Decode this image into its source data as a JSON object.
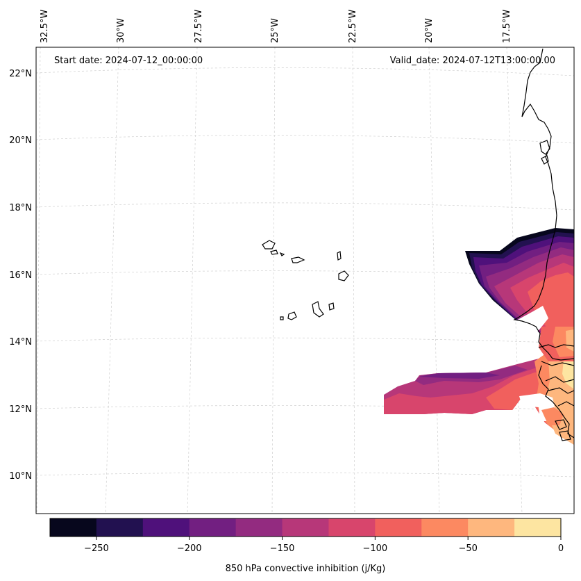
{
  "annotations": {
    "start_date": "Start date: 2024-07-12_00:00:00",
    "valid_date": "Valid_date: 2024-07-12T13:00:00.00"
  },
  "longitude_labels": [
    "32.5°W",
    "30°W",
    "27.5°W",
    "25°W",
    "22.5°W",
    "20°W",
    "17.5°W"
  ],
  "latitude_labels": [
    "22°N",
    "20°N",
    "18°N",
    "16°N",
    "14°N",
    "12°N",
    "10°N"
  ],
  "colorbar": {
    "label": "850 hPa convective inhibition (j/Kg)",
    "tick_labels": [
      "−250",
      "−200",
      "−150",
      "−100",
      "−50",
      "0"
    ],
    "levels": [
      -275,
      -250,
      -225,
      -200,
      -175,
      -150,
      -125,
      -100,
      -75,
      -50,
      -25,
      0
    ],
    "colors": [
      "#07071d",
      "#221150",
      "#4f117b",
      "#721f81",
      "#932b80",
      "#b73779",
      "#d8456c",
      "#f1605d",
      "#fc8961",
      "#feb77e",
      "#fde5a1"
    ]
  }
}
